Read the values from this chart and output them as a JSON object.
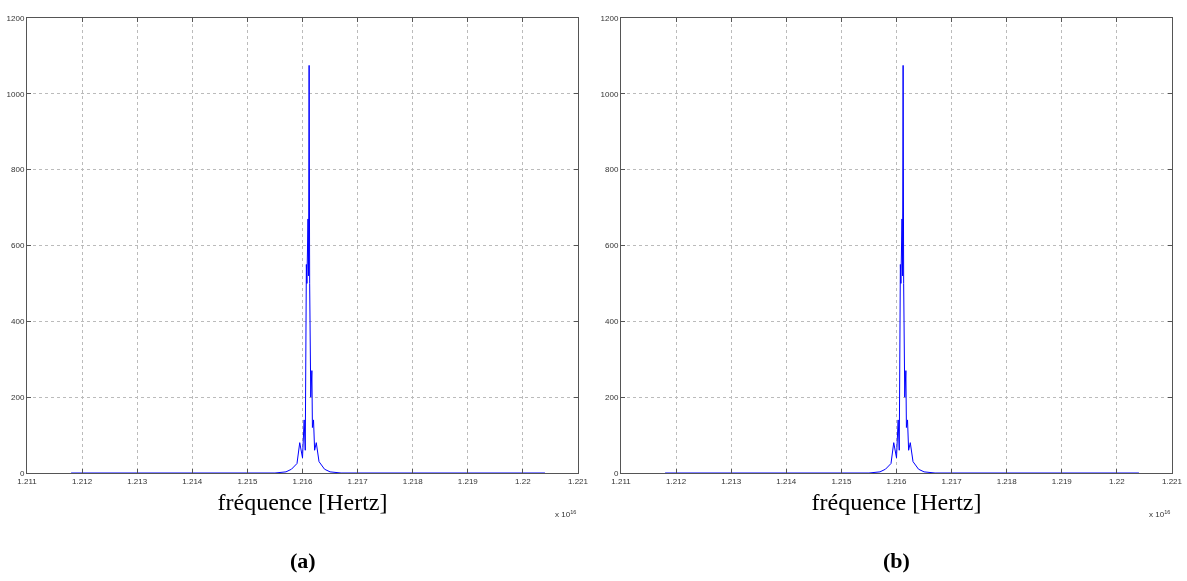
{
  "chart_data": [
    {
      "type": "line",
      "xlabel": "fréquence [Hertz]",
      "annotations": [
        "x 10$^{16}$",
        "(a)"
      ],
      "xlim": [
        1.211,
        1.221
      ],
      "xticks": [
        1.211,
        1.212,
        1.213,
        1.214,
        1.215,
        1.216,
        1.217,
        1.218,
        1.219,
        1.22,
        1.221
      ],
      "ylim": [
        0,
        1200
      ],
      "yticks": [
        0,
        200,
        400,
        600,
        800,
        1000,
        1200
      ],
      "grid": true,
      "line_style": "solid",
      "marker": "none",
      "x": [
        1.2118,
        1.2155,
        1.2157,
        1.2158,
        1.2159,
        1.21595,
        1.216,
        1.21603,
        1.21605,
        1.21607,
        1.21608,
        1.2161,
        1.21611,
        1.21612,
        1.21613,
        1.21615,
        1.21617,
        1.21618,
        1.2162,
        1.21622,
        1.21625,
        1.2163,
        1.2164,
        1.2165,
        1.2167,
        1.2204
      ],
      "series": [
        {
          "color": "#0000ff",
          "values": [
            0,
            0,
            3,
            10,
            25,
            80,
            40,
            140,
            60,
            550,
            500,
            670,
            520,
            1075,
            500,
            200,
            270,
            120,
            140,
            60,
            80,
            30,
            10,
            3,
            0,
            0
          ]
        }
      ]
    },
    {
      "type": "line",
      "xlabel": "fréquence [Hertz]",
      "annotations": [
        "x 10$^{16}$",
        "(b)"
      ],
      "xlim": [
        1.211,
        1.221
      ],
      "xticks": [
        1.211,
        1.212,
        1.213,
        1.214,
        1.215,
        1.216,
        1.217,
        1.218,
        1.219,
        1.22,
        1.221
      ],
      "ylim": [
        0,
        1200
      ],
      "yticks": [
        0,
        200,
        400,
        600,
        800,
        1000,
        1200
      ],
      "grid": true,
      "line_style": "solid",
      "marker": "none",
      "x": [
        1.2118,
        1.2155,
        1.2157,
        1.2158,
        1.2159,
        1.21595,
        1.216,
        1.21603,
        1.21605,
        1.21607,
        1.21608,
        1.2161,
        1.21611,
        1.21612,
        1.21613,
        1.21615,
        1.21617,
        1.21618,
        1.2162,
        1.21622,
        1.21625,
        1.2163,
        1.2164,
        1.2165,
        1.2167,
        1.2204
      ],
      "series": [
        {
          "color": "#0000ff",
          "values": [
            0,
            0,
            3,
            10,
            25,
            80,
            40,
            140,
            60,
            550,
            500,
            670,
            520,
            1075,
            500,
            200,
            270,
            120,
            140,
            60,
            80,
            30,
            10,
            3,
            0,
            0
          ]
        }
      ]
    }
  ]
}
